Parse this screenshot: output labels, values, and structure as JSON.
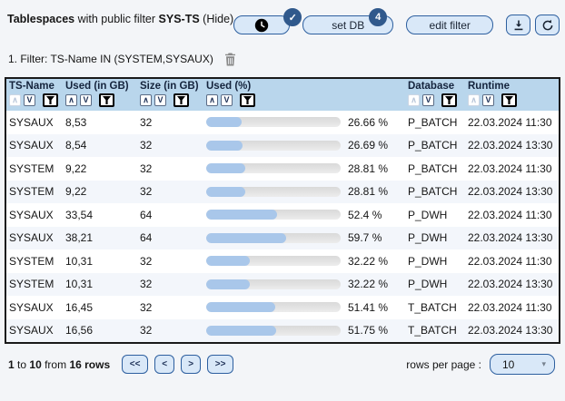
{
  "colors": {
    "accent_border": "#2d5f9f",
    "button_bg": "#d9e8f8",
    "badge_bg": "#30598c",
    "table_header_bg": "#b9d6ec",
    "bar_fill": "#a9c7ea",
    "bar_track": "#e0e0e0",
    "row_alt_bg": "#f3f6fb"
  },
  "topbar": {
    "title_bold": "Tablespaces",
    "title_regular": " with public filter ",
    "title_filter_name": "SYS-TS",
    "hide_label": "(Hide)",
    "clock_badge_glyph": "✓",
    "set_db_label": "set DB",
    "set_db_badge": "4",
    "edit_filter_label": "edit filter"
  },
  "filter_bar": {
    "label": "1. Filter: TS-Name IN (SYSTEM,SYSAUX)"
  },
  "table": {
    "sort_up_glyph": "∧",
    "sort_down_glyph": "V",
    "columns": [
      {
        "key": "ts_name",
        "label": "TS-Name",
        "sort_asc_active": true
      },
      {
        "key": "used_gb",
        "label": "Used (in GB)",
        "sort_asc_active": false
      },
      {
        "key": "size_gb",
        "label": "Size (in GB)",
        "sort_asc_active": false
      },
      {
        "key": "used_pct",
        "label": "Used (%)",
        "sort_asc_active": false
      },
      {
        "key": "database",
        "label": "Database",
        "sort_asc_active": true
      },
      {
        "key": "runtime",
        "label": "Runtime",
        "sort_asc_active": true
      }
    ],
    "rows": [
      {
        "ts_name": "SYSAUX",
        "used_gb": "8,53",
        "size_gb": "32",
        "used_pct": 26.66,
        "used_pct_label": "26.66 %",
        "database": "P_BATCH",
        "runtime": "22.03.2024 11:30"
      },
      {
        "ts_name": "SYSAUX",
        "used_gb": "8,54",
        "size_gb": "32",
        "used_pct": 26.69,
        "used_pct_label": "26.69 %",
        "database": "P_BATCH",
        "runtime": "22.03.2024 13:30"
      },
      {
        "ts_name": "SYSTEM",
        "used_gb": "9,22",
        "size_gb": "32",
        "used_pct": 28.81,
        "used_pct_label": "28.81 %",
        "database": "P_BATCH",
        "runtime": "22.03.2024 11:30"
      },
      {
        "ts_name": "SYSTEM",
        "used_gb": "9,22",
        "size_gb": "32",
        "used_pct": 28.81,
        "used_pct_label": "28.81 %",
        "database": "P_BATCH",
        "runtime": "22.03.2024 13:30"
      },
      {
        "ts_name": "SYSAUX",
        "used_gb": "33,54",
        "size_gb": "64",
        "used_pct": 52.4,
        "used_pct_label": "52.4 %",
        "database": "P_DWH",
        "runtime": "22.03.2024 11:30"
      },
      {
        "ts_name": "SYSAUX",
        "used_gb": "38,21",
        "size_gb": "64",
        "used_pct": 59.7,
        "used_pct_label": "59.7 %",
        "database": "P_DWH",
        "runtime": "22.03.2024 13:30"
      },
      {
        "ts_name": "SYSTEM",
        "used_gb": "10,31",
        "size_gb": "32",
        "used_pct": 32.22,
        "used_pct_label": "32.22 %",
        "database": "P_DWH",
        "runtime": "22.03.2024 11:30"
      },
      {
        "ts_name": "SYSTEM",
        "used_gb": "10,31",
        "size_gb": "32",
        "used_pct": 32.22,
        "used_pct_label": "32.22 %",
        "database": "P_DWH",
        "runtime": "22.03.2024 13:30"
      },
      {
        "ts_name": "SYSAUX",
        "used_gb": "16,45",
        "size_gb": "32",
        "used_pct": 51.41,
        "used_pct_label": "51.41 %",
        "database": "T_BATCH",
        "runtime": "22.03.2024 11:30"
      },
      {
        "ts_name": "SYSAUX",
        "used_gb": "16,56",
        "size_gb": "32",
        "used_pct": 51.75,
        "used_pct_label": "51.75 %",
        "database": "T_BATCH",
        "runtime": "22.03.2024 13:30"
      }
    ]
  },
  "footer": {
    "range_start": "1",
    "to_word": "to",
    "range_end": "10",
    "from_word": "from",
    "total": "16 rows",
    "pager": {
      "first": "<<",
      "prev": "<",
      "next": ">",
      "last": ">>"
    },
    "rows_per_page_label": "rows per page :",
    "rows_per_page_value": "10",
    "caret_glyph": "▾"
  }
}
